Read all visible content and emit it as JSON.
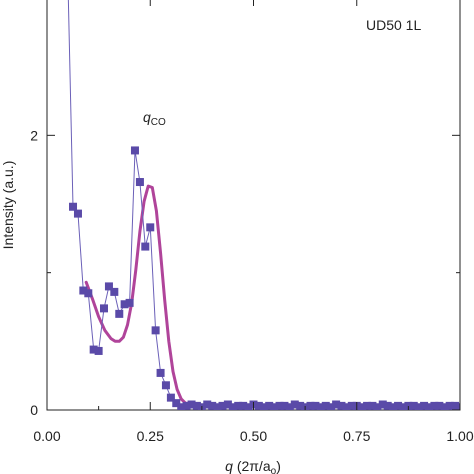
{
  "colors": {
    "data_markers": "#5a4aa8",
    "data_line": "#6b60b8",
    "fit_curve": "#b0449a",
    "axis": "#222222"
  },
  "chart_data": {
    "type": "scatter",
    "title": "",
    "sample_label": "UD50 1L",
    "annotation": {
      "italic": "q",
      "subscript": "CO",
      "x": 0.255,
      "y": 2.05
    },
    "xlabel": {
      "italic": "q",
      "rest": " (2π/a",
      "subscript": "o",
      "close": ")"
    },
    "ylabel": "Intensity (a.u.)",
    "xlim": [
      0.0,
      1.0
    ],
    "ylim": [
      0.0,
      3.0
    ],
    "x_ticks": [
      0.0,
      0.25,
      0.5,
      0.75,
      1.0
    ],
    "x_tick_labels": [
      "0.00",
      "0.25",
      "0.50",
      "0.75",
      "1.00"
    ],
    "y_ticks": [
      0,
      2
    ],
    "y_tick_labels": [
      "0",
      "2"
    ],
    "grid": false,
    "series": [
      {
        "kind": "markers+line",
        "x": [
          0.05,
          0.063,
          0.075,
          0.088,
          0.1,
          0.113,
          0.125,
          0.138,
          0.15,
          0.163,
          0.175,
          0.188,
          0.2,
          0.213,
          0.225,
          0.238,
          0.25,
          0.263,
          0.275,
          0.288,
          0.3,
          0.313,
          0.325,
          0.338,
          0.35,
          0.363,
          0.375,
          0.388,
          0.4,
          0.413,
          0.425,
          0.438,
          0.45,
          0.463,
          0.475,
          0.488,
          0.5,
          0.513,
          0.525,
          0.538,
          0.55,
          0.563,
          0.575,
          0.588,
          0.6,
          0.613,
          0.625,
          0.638,
          0.65,
          0.663,
          0.675,
          0.688,
          0.7,
          0.713,
          0.725,
          0.738,
          0.75,
          0.763,
          0.775,
          0.788,
          0.8,
          0.813,
          0.825,
          0.838,
          0.85,
          0.863,
          0.875,
          0.888,
          0.9,
          0.913,
          0.925,
          0.938,
          0.95,
          0.963,
          0.975,
          0.988,
          1.0
        ],
        "y": [
          3.2,
          1.48,
          1.43,
          0.87,
          0.85,
          0.44,
          0.43,
          0.74,
          0.9,
          0.86,
          0.7,
          0.77,
          0.78,
          1.89,
          1.66,
          1.19,
          1.33,
          0.58,
          0.27,
          0.18,
          0.09,
          0.05,
          0.02,
          0.03,
          0.04,
          0.03,
          0.02,
          0.04,
          0.03,
          0.02,
          0.03,
          0.04,
          0.02,
          0.03,
          0.03,
          0.02,
          0.04,
          0.03,
          0.02,
          0.03,
          0.02,
          0.03,
          0.03,
          0.02,
          0.04,
          0.03,
          0.02,
          0.03,
          0.03,
          0.02,
          0.03,
          0.02,
          0.04,
          0.03,
          0.02,
          0.03,
          0.03,
          0.02,
          0.03,
          0.03,
          0.02,
          0.04,
          0.03,
          0.02,
          0.03,
          0.02,
          0.03,
          0.03,
          0.02,
          0.03,
          0.02,
          0.03,
          0.03,
          0.02,
          0.03,
          0.03,
          0.02
        ]
      },
      {
        "kind": "fit-curve",
        "x": [
          0.095,
          0.11,
          0.125,
          0.14,
          0.155,
          0.165,
          0.175,
          0.185,
          0.195,
          0.205,
          0.215,
          0.225,
          0.235,
          0.245,
          0.255,
          0.265,
          0.275,
          0.285,
          0.295,
          0.305,
          0.315,
          0.325,
          0.335,
          0.345,
          0.36,
          0.38,
          0.4,
          0.43
        ],
        "y": [
          0.93,
          0.81,
          0.68,
          0.58,
          0.52,
          0.5,
          0.5,
          0.53,
          0.62,
          0.78,
          1.02,
          1.3,
          1.52,
          1.63,
          1.62,
          1.45,
          1.14,
          0.8,
          0.5,
          0.28,
          0.15,
          0.08,
          0.05,
          0.04,
          0.03,
          0.03,
          0.03,
          0.03
        ]
      }
    ]
  }
}
